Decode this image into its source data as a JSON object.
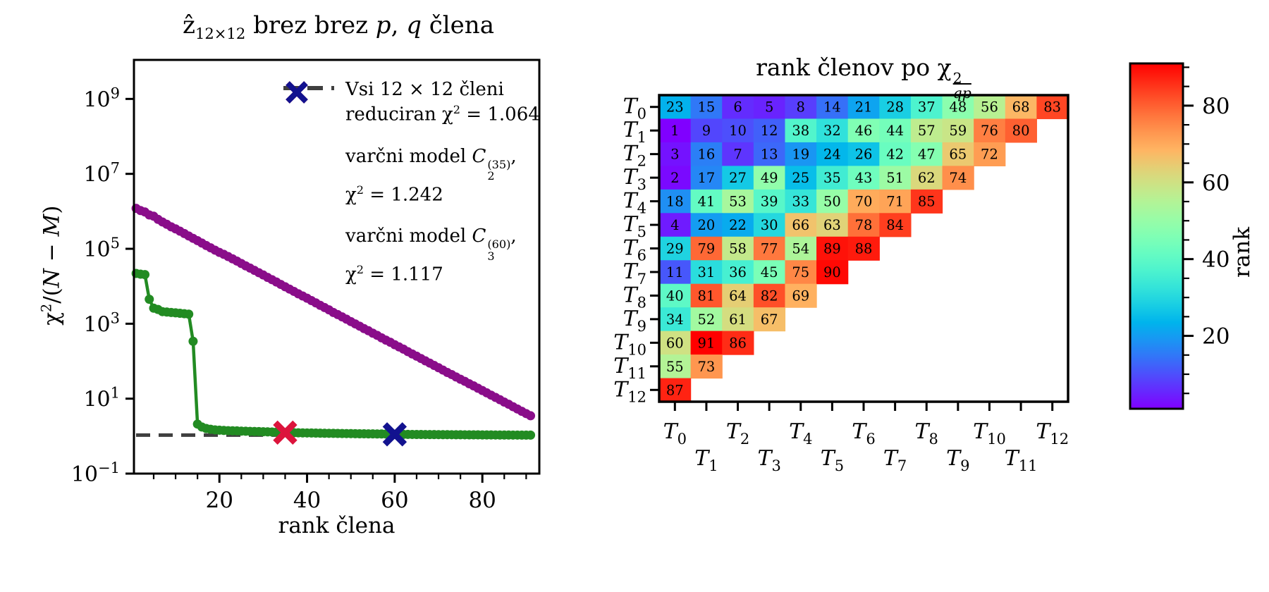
{
  "figure": {
    "background": "#ffffff"
  },
  "chart_data": [
    {
      "type": "scatter",
      "title": "ẑ_{12×12} brez brez *p*, *q* člena",
      "xlabel": "rank člena",
      "ylabel": "χ^{2}/(*N* − *M*)",
      "y_scale": "log",
      "xlim": [
        0.5,
        93
      ],
      "ylim": [
        0.1,
        11000000000
      ],
      "x_ticks": [
        20,
        40,
        60,
        80
      ],
      "x_minor_step": 5,
      "y_tick_exponents": [
        9,
        7,
        5,
        3,
        1,
        -1
      ],
      "x_start": 1,
      "x_step": 1,
      "series": [
        {
          "color": "#8a0d8a",
          "y": [
            1200000,
            1050000,
            960000,
            800000,
            740000,
            610000,
            520000,
            450000,
            385000,
            340000,
            295000,
            255000,
            220000,
            190000,
            165000,
            142000,
            122000,
            106000,
            92000,
            80000,
            71000,
            62000,
            54000,
            47000,
            40500,
            35000,
            30500,
            26500,
            23000,
            20000,
            17200,
            15000,
            13000,
            11200,
            9700,
            8400,
            7300,
            6300,
            5500,
            4800,
            4150,
            3600,
            3100,
            2700,
            2350,
            2000,
            1750,
            1520,
            1320,
            1140,
            990,
            860,
            740,
            650,
            560,
            490,
            420,
            365,
            320,
            275,
            240,
            210,
            180,
            156,
            136,
            118,
            102,
            89,
            77,
            67,
            58,
            50,
            44,
            38,
            33,
            29,
            25,
            22,
            19,
            16.5,
            14.3,
            12.4,
            10.8,
            9.4,
            8.1,
            7.1,
            6.1,
            5.3,
            4.6,
            4.0,
            3.5
          ]
        },
        {
          "color": "#228B22",
          "y": [
            22000,
            21000,
            20500,
            4500,
            2600,
            2400,
            2100,
            2050,
            2000,
            1950,
            1900,
            1850,
            1800,
            340,
            2.1,
            1.75,
            1.6,
            1.52,
            1.47,
            1.44,
            1.42,
            1.4,
            1.39,
            1.38,
            1.36,
            1.35,
            1.34,
            1.33,
            1.32,
            1.31,
            1.3,
            1.29,
            1.28,
            1.26,
            1.242,
            1.235,
            1.23,
            1.225,
            1.22,
            1.215,
            1.21,
            1.205,
            1.2,
            1.195,
            1.19,
            1.185,
            1.18,
            1.175,
            1.17,
            1.165,
            1.16,
            1.157,
            1.154,
            1.15,
            1.147,
            1.144,
            1.141,
            1.138,
            1.135,
            1.117,
            1.115,
            1.113,
            1.111,
            1.109,
            1.107,
            1.105,
            1.103,
            1.101,
            1.099,
            1.097,
            1.095,
            1.093,
            1.091,
            1.089,
            1.087,
            1.085,
            1.084,
            1.082,
            1.08,
            1.078,
            1.077,
            1.075,
            1.074,
            1.072,
            1.071,
            1.07,
            1.068,
            1.067,
            1.066,
            1.065,
            1.064
          ]
        }
      ],
      "hline": {
        "y": 1.064,
        "style": "dashed",
        "color": "#3f3f3f"
      },
      "markers": [
        {
          "x": 35,
          "y": 1.242,
          "shape": "X",
          "color": "#DC143C"
        },
        {
          "x": 60,
          "y": 1.117,
          "shape": "X",
          "color": "#12128F"
        }
      ],
      "legend": {
        "position": "upper right",
        "entries": [
          {
            "symbol": "dashed-line",
            "color": "#3f3f3f",
            "lines": [
              "Vsi 12 × 12 členi",
              "reduciran χ^{2} = 1.064"
            ]
          },
          {
            "symbol": "x-marker",
            "color": "#DC143C",
            "lines": [
              "varčni model *C*_{2}^{(35)},",
              "χ^{2} = 1.242"
            ]
          },
          {
            "symbol": "x-marker",
            "color": "#12128F",
            "lines": [
              "varčni model *C*_{3}^{(60)},",
              "χ^{2} = 1.117"
            ]
          }
        ]
      }
    },
    {
      "type": "heatmap",
      "title": "rank členov po χ^{2}_{~qp}",
      "colormap": "rainbow",
      "vmin": 1,
      "vmax": 91,
      "row_labels": [
        "T_{0}",
        "T_{1}",
        "T_{2}",
        "T_{3}",
        "T_{4}",
        "T_{5}",
        "T_{6}",
        "T_{7}",
        "T_{8}",
        "T_{9}",
        "T_{10}",
        "T_{11}",
        "T_{12}"
      ],
      "col_labels": [
        "T_{0}",
        "T_{1}",
        "T_{2}",
        "T_{3}",
        "T_{4}",
        "T_{5}",
        "T_{6}",
        "T_{7}",
        "T_{8}",
        "T_{9}",
        "T_{10}",
        "T_{11}",
        "T_{12}"
      ],
      "rows": [
        [
          23,
          15,
          6,
          5,
          8,
          14,
          21,
          28,
          37,
          48,
          56,
          68,
          83
        ],
        [
          1,
          9,
          10,
          12,
          38,
          32,
          46,
          44,
          57,
          59,
          76,
          80
        ],
        [
          3,
          16,
          7,
          13,
          19,
          24,
          26,
          42,
          47,
          65,
          72
        ],
        [
          2,
          17,
          27,
          49,
          25,
          35,
          43,
          51,
          62,
          74
        ],
        [
          18,
          41,
          53,
          39,
          33,
          50,
          70,
          71,
          85
        ],
        [
          4,
          20,
          22,
          30,
          66,
          63,
          78,
          84
        ],
        [
          29,
          79,
          58,
          77,
          54,
          89,
          88
        ],
        [
          11,
          31,
          36,
          45,
          75,
          90
        ],
        [
          40,
          81,
          64,
          82,
          69
        ],
        [
          34,
          52,
          61,
          67
        ],
        [
          60,
          91,
          86
        ],
        [
          55,
          73
        ],
        [
          87
        ]
      ],
      "colorbar": {
        "label": "rank",
        "major_ticks": [
          20,
          40,
          60,
          80
        ],
        "minor_tick_step": 5
      }
    }
  ]
}
